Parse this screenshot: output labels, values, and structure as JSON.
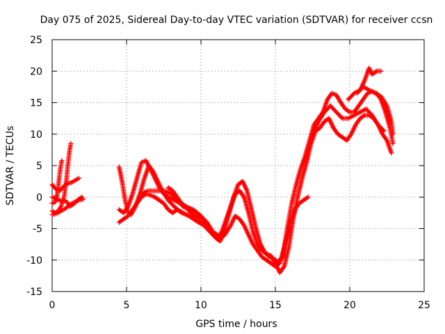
{
  "chart_data": {
    "type": "scatter",
    "title": "Day 075 of 2025, Sidereal Day-to-day VTEC variation (SDTVAR) for receiver ccsn",
    "xlabel": "GPS time / hours",
    "ylabel": "SDTVAR / TECUs",
    "xlim": [
      0,
      25
    ],
    "ylim": [
      -15,
      25
    ],
    "xticks": [
      0,
      5,
      10,
      15,
      20,
      25
    ],
    "yticks": [
      -15,
      -10,
      -5,
      0,
      5,
      10,
      15,
      20,
      25
    ],
    "grid": true,
    "marker": "+",
    "color": "#ff0000",
    "series": [
      {
        "points": [
          [
            0.0,
            2.0
          ],
          [
            0.15,
            1.5
          ],
          [
            0.3,
            1.2
          ],
          [
            0.5,
            1.0
          ],
          [
            0.7,
            1.5
          ],
          [
            0.9,
            2.0
          ],
          [
            1.1,
            2.2
          ],
          [
            1.3,
            2.3
          ],
          [
            1.5,
            2.6
          ],
          [
            1.8,
            3.0
          ]
        ]
      },
      {
        "points": [
          [
            0.0,
            -1.0
          ],
          [
            0.2,
            -0.8
          ],
          [
            0.35,
            0.5
          ],
          [
            0.45,
            2.5
          ],
          [
            0.55,
            4.5
          ],
          [
            0.65,
            5.8
          ]
        ]
      },
      {
        "points": [
          [
            0.0,
            -2.2
          ],
          [
            0.2,
            -2.5
          ],
          [
            0.4,
            -2.2
          ],
          [
            0.6,
            -1.5
          ],
          [
            0.8,
            0.0
          ],
          [
            0.95,
            2.5
          ],
          [
            1.05,
            5.0
          ],
          [
            1.15,
            7.0
          ],
          [
            1.25,
            8.5
          ]
        ]
      },
      {
        "points": [
          [
            0.0,
            -2.8
          ],
          [
            0.3,
            -2.6
          ],
          [
            0.6,
            -2.2
          ],
          [
            0.9,
            -1.8
          ],
          [
            1.2,
            -1.2
          ],
          [
            1.5,
            -0.8
          ],
          [
            1.8,
            -0.5
          ],
          [
            2.1,
            -0.3
          ]
        ]
      },
      {
        "points": [
          [
            0.0,
            0.0
          ],
          [
            0.3,
            -0.3
          ],
          [
            0.6,
            -0.6
          ],
          [
            0.8,
            -0.5
          ],
          [
            1.0,
            -0.8
          ],
          [
            1.2,
            -1.5
          ],
          [
            1.4,
            -1.2
          ],
          [
            1.7,
            -0.5
          ],
          [
            2.0,
            0.0
          ]
        ]
      },
      {
        "points": [
          [
            4.5,
            4.8
          ],
          [
            4.7,
            2.5
          ],
          [
            4.9,
            -0.5
          ],
          [
            5.1,
            -2.5
          ],
          [
            5.3,
            -2.8
          ],
          [
            5.6,
            -1.5
          ],
          [
            5.9,
            0.5
          ],
          [
            6.2,
            3.0
          ],
          [
            6.5,
            5.0
          ],
          [
            6.8,
            4.0
          ],
          [
            7.1,
            2.5
          ],
          [
            7.4,
            1.0
          ],
          [
            7.8,
            -0.5
          ],
          [
            8.2,
            -1.5
          ],
          [
            8.7,
            -2.5
          ],
          [
            9.2,
            -3.0
          ],
          [
            9.7,
            -3.8
          ],
          [
            10.2,
            -4.5
          ],
          [
            10.6,
            -5.5
          ],
          [
            11.0,
            -6.5
          ],
          [
            11.3,
            -7.0
          ],
          [
            11.6,
            -5.0
          ],
          [
            11.9,
            -2.5
          ],
          [
            12.2,
            0.0
          ],
          [
            12.5,
            2.0
          ],
          [
            12.8,
            2.5
          ],
          [
            13.1,
            1.0
          ],
          [
            13.4,
            -2.0
          ],
          [
            13.7,
            -5.0
          ],
          [
            14.0,
            -7.5
          ],
          [
            14.3,
            -8.8
          ],
          [
            14.6,
            -9.5
          ],
          [
            14.9,
            -9.8
          ],
          [
            15.2,
            -10.3
          ],
          [
            15.5,
            -9.5
          ],
          [
            15.8,
            -5.0
          ],
          [
            16.1,
            -1.0
          ],
          [
            16.4,
            2.0
          ],
          [
            16.7,
            4.5
          ],
          [
            17.0,
            6.5
          ],
          [
            17.3,
            9.0
          ],
          [
            17.6,
            11.5
          ],
          [
            17.9,
            12.5
          ],
          [
            18.2,
            13.5
          ],
          [
            18.5,
            15.5
          ],
          [
            18.8,
            16.5
          ],
          [
            19.1,
            16.2
          ],
          [
            19.4,
            15.0
          ],
          [
            19.7,
            14.0
          ],
          [
            20.0,
            13.5
          ],
          [
            20.3,
            13.5
          ],
          [
            20.6,
            14.5
          ],
          [
            20.9,
            15.5
          ],
          [
            21.2,
            16.5
          ],
          [
            21.5,
            16.8
          ],
          [
            21.8,
            16.5
          ],
          [
            22.1,
            15.5
          ],
          [
            22.4,
            13.5
          ],
          [
            22.7,
            11.0
          ],
          [
            22.9,
            8.5
          ]
        ]
      },
      {
        "points": [
          [
            4.5,
            -2.0
          ],
          [
            4.8,
            -2.5
          ],
          [
            5.1,
            -1.5
          ],
          [
            5.4,
            0.5
          ],
          [
            5.7,
            3.0
          ],
          [
            6.0,
            5.5
          ],
          [
            6.3,
            5.8
          ],
          [
            6.6,
            4.5
          ],
          [
            6.9,
            3.0
          ],
          [
            7.2,
            1.5
          ],
          [
            7.5,
            0.5
          ],
          [
            7.8,
            0.0
          ],
          [
            8.2,
            -0.5
          ],
          [
            8.6,
            -1.0
          ],
          [
            9.0,
            -1.5
          ],
          [
            9.5,
            -2.0
          ],
          [
            10.0,
            -3.0
          ],
          [
            10.5,
            -5.0
          ],
          [
            10.8,
            -6.0
          ],
          [
            11.1,
            -6.5
          ],
          [
            11.4,
            -5.5
          ],
          [
            11.7,
            -3.5
          ],
          [
            12.0,
            -1.5
          ],
          [
            12.3,
            0.5
          ],
          [
            12.6,
            1.0
          ],
          [
            12.9,
            0.0
          ],
          [
            13.2,
            -2.5
          ],
          [
            13.5,
            -5.5
          ],
          [
            13.8,
            -7.5
          ],
          [
            14.1,
            -8.5
          ],
          [
            14.4,
            -9.0
          ],
          [
            14.7,
            -9.3
          ],
          [
            15.0,
            -10.5
          ],
          [
            15.3,
            -12.0
          ],
          [
            15.6,
            -11.0
          ],
          [
            15.9,
            -8.0
          ],
          [
            16.2,
            -3.5
          ],
          [
            16.5,
            0.0
          ],
          [
            16.8,
            3.0
          ],
          [
            17.1,
            5.5
          ],
          [
            17.4,
            8.5
          ],
          [
            17.7,
            10.5
          ],
          [
            18.0,
            11.0
          ],
          [
            18.3,
            12.0
          ],
          [
            18.6,
            12.5
          ],
          [
            18.9,
            11.0
          ],
          [
            19.2,
            10.0
          ],
          [
            19.5,
            9.5
          ],
          [
            19.8,
            9.0
          ],
          [
            20.1,
            10.0
          ],
          [
            20.4,
            11.5
          ],
          [
            20.7,
            12.5
          ],
          [
            21.0,
            13.0
          ],
          [
            21.3,
            13.0
          ],
          [
            21.6,
            12.5
          ],
          [
            21.9,
            11.5
          ],
          [
            22.2,
            10.0
          ],
          [
            22.5,
            9.0
          ],
          [
            22.8,
            7.0
          ]
        ]
      },
      {
        "points": [
          [
            4.5,
            -4.0
          ],
          [
            4.8,
            -3.5
          ],
          [
            5.1,
            -3.0
          ],
          [
            5.4,
            -2.0
          ],
          [
            5.7,
            -1.0
          ],
          [
            6.0,
            0.0
          ],
          [
            6.3,
            0.5
          ],
          [
            6.6,
            0.3
          ],
          [
            6.9,
            0.0
          ],
          [
            7.2,
            -0.5
          ],
          [
            7.5,
            -1.0
          ],
          [
            7.8,
            -2.0
          ],
          [
            8.1,
            -2.5
          ],
          [
            8.4,
            -2.0
          ],
          [
            8.8,
            -2.5
          ],
          [
            9.2,
            -3.0
          ],
          [
            9.6,
            -3.5
          ],
          [
            10.0,
            -4.0
          ],
          [
            10.4,
            -4.5
          ],
          [
            10.8,
            -6.0
          ],
          [
            11.2,
            -6.8
          ],
          [
            11.6,
            -6.0
          ],
          [
            12.0,
            -4.5
          ],
          [
            12.3,
            -3.0
          ],
          [
            12.6,
            -3.5
          ],
          [
            12.9,
            -4.5
          ],
          [
            13.2,
            -6.0
          ],
          [
            13.5,
            -7.5
          ],
          [
            13.8,
            -8.5
          ],
          [
            14.1,
            -9.5
          ],
          [
            14.4,
            -10.0
          ],
          [
            14.7,
            -10.5
          ],
          [
            15.0,
            -11.0
          ],
          [
            15.3,
            -10.5
          ],
          [
            15.6,
            -8.0
          ],
          [
            15.8,
            -6.0
          ],
          [
            16.0,
            -4.0
          ],
          [
            16.3,
            -2.0
          ],
          [
            16.6,
            -1.0
          ],
          [
            16.9,
            -0.5
          ],
          [
            17.2,
            0.0
          ]
        ]
      },
      {
        "points": [
          [
            6.0,
            0.5
          ],
          [
            6.4,
            1.0
          ],
          [
            6.8,
            1.0
          ],
          [
            7.2,
            1.0
          ],
          [
            7.6,
            1.0
          ],
          [
            8.0,
            0.5
          ],
          [
            8.4,
            -0.5
          ],
          [
            8.8,
            -1.5
          ],
          [
            9.2,
            -2.0
          ],
          [
            9.6,
            -2.5
          ],
          [
            10.0,
            -3.0
          ],
          [
            10.4,
            -4.0
          ],
          [
            10.8,
            -5.5
          ],
          [
            11.1,
            -6.0
          ]
        ]
      },
      {
        "points": [
          [
            7.8,
            1.5
          ],
          [
            8.1,
            1.0
          ],
          [
            8.4,
            0.0
          ],
          [
            8.7,
            -1.0
          ],
          [
            9.0,
            -1.5
          ],
          [
            9.3,
            -2.5
          ],
          [
            9.6,
            -3.0
          ],
          [
            10.0,
            -3.5
          ]
        ]
      },
      {
        "points": [
          [
            17.5,
            10.0
          ],
          [
            17.9,
            12.0
          ],
          [
            18.3,
            13.5
          ],
          [
            18.7,
            14.5
          ],
          [
            19.1,
            13.5
          ],
          [
            19.5,
            12.5
          ],
          [
            19.9,
            12.5
          ],
          [
            20.3,
            13.0
          ],
          [
            20.7,
            13.5
          ],
          [
            21.1,
            14.0
          ],
          [
            21.5,
            13.0
          ],
          [
            21.9,
            11.5
          ],
          [
            22.3,
            10.5
          ]
        ]
      },
      {
        "points": [
          [
            19.9,
            15.5
          ],
          [
            20.3,
            16.5
          ],
          [
            20.7,
            17.0
          ],
          [
            21.0,
            18.5
          ],
          [
            21.3,
            20.5
          ],
          [
            21.5,
            19.5
          ],
          [
            21.8,
            20.0
          ],
          [
            22.1,
            20.0
          ]
        ]
      },
      {
        "points": [
          [
            20.5,
            16.5
          ],
          [
            20.9,
            17.5
          ],
          [
            21.3,
            17.0
          ],
          [
            21.7,
            16.5
          ],
          [
            22.1,
            16.0
          ],
          [
            22.5,
            14.5
          ],
          [
            22.8,
            12.0
          ],
          [
            22.9,
            10.0
          ]
        ]
      }
    ]
  }
}
